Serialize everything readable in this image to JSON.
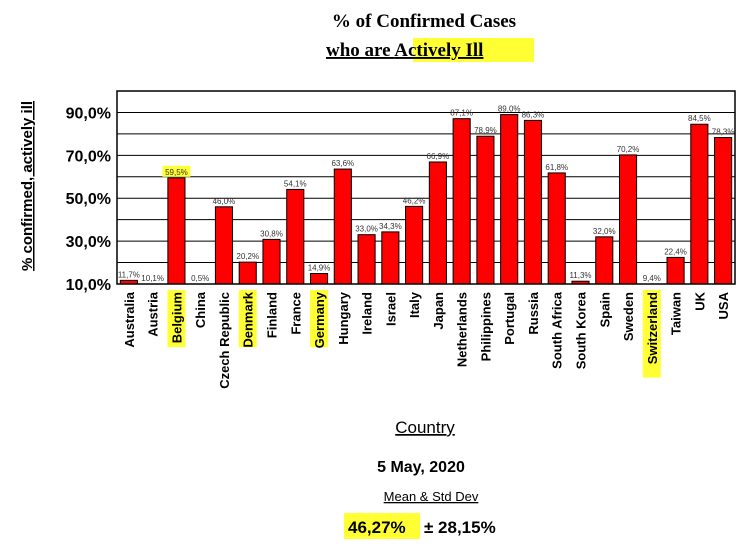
{
  "chart_data": {
    "type": "bar",
    "title_line1": "% of Confirmed Cases",
    "title_line2_prefix": "who are ",
    "title_line2_highlight": "Actively Ill",
    "ylabel": "% confirmed, actively ill",
    "xlabel": "Country",
    "ylim": [
      10,
      100
    ],
    "yticks": [
      "10,0%",
      "30,0%",
      "50,0%",
      "70,0%",
      "90,0%"
    ],
    "ytick_values": [
      10,
      30,
      50,
      70,
      90
    ],
    "grid": true,
    "bar_color": "#ff0000",
    "highlight_color": "#ffff33",
    "categories": [
      "Australia",
      "Austria",
      "Belgium",
      "China",
      "Czech Republic",
      "Denmark",
      "Finland",
      "France",
      "Germany",
      "Hungary",
      "Ireland",
      "Israel",
      "Italy",
      "Japan",
      "Netherlands",
      "Philippines",
      "Portugal",
      "Russia",
      "South Africa",
      "South Korea",
      "Spain",
      "Sweden",
      "Switzerland",
      "Taiwan",
      "UK",
      "USA"
    ],
    "values": [
      11.7,
      10.1,
      59.5,
      0.5,
      46.0,
      20.2,
      30.8,
      54.1,
      14.9,
      63.6,
      33.0,
      34.3,
      46.2,
      66.9,
      87.1,
      78.9,
      89.0,
      86.3,
      61.8,
      11.3,
      32.0,
      70.2,
      9.4,
      22.4,
      84.5,
      78.3
    ],
    "labels": [
      "11,7%",
      "10,1%",
      "59,5%",
      "0,5%",
      "46,0%",
      "20,2%",
      "30,8%",
      "54,1%",
      "14,9%",
      "63,6%",
      "33,0%",
      "34,3%",
      "46,2%",
      "66,9%",
      "87,1%",
      "78,9%",
      "89,0%",
      "86,3%",
      "61,8%",
      "11,3%",
      "32,0%",
      "70,2%",
      "9,4%",
      "22,4%",
      "84,5%",
      "78,3%"
    ],
    "highlighted": [
      "Belgium",
      "Denmark",
      "Germany",
      "Switzerland"
    ]
  },
  "footer": {
    "date": "5 May, 2020",
    "stats_label": "Mean & Std Dev",
    "mean": "46,27%",
    "std": "± 28,15%"
  }
}
